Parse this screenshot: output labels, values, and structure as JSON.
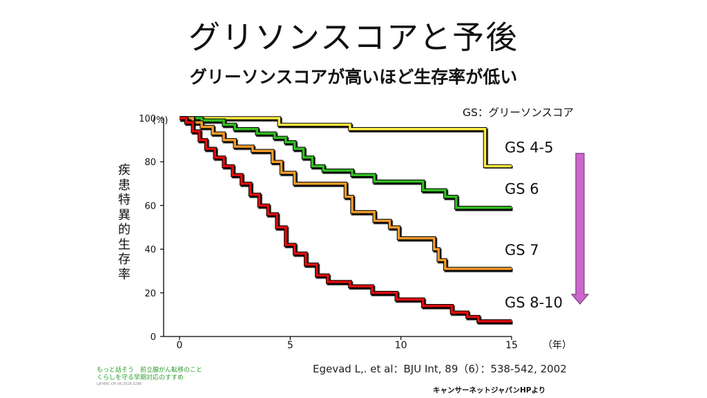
{
  "slide": {
    "title": "グリソンスコアと予後",
    "subtitle": "グリーソンスコアが高いほど生存率が低い",
    "citation": "Egevad L,. et al：BJU Int, 89（6）：538-542, 2002",
    "source": "キャンサーネットジャパンHPより",
    "footer_line1": "もっと話そう　前立腺がん転移のこと",
    "footer_line2": "くらしを守る早期対応のすすめ",
    "footer_code": "LJP.MAC.OH.06.2018.3296"
  },
  "chart_data": {
    "type": "line",
    "step": true,
    "ylabel": "疾患特異的生存率",
    "ylabel_unit": "(%)",
    "xlabel_unit": "（年）",
    "legend_title": "GS：グリーソンスコア",
    "xlim": [
      0,
      15
    ],
    "ylim": [
      0,
      100
    ],
    "xticks": [
      0,
      5,
      10,
      15
    ],
    "yticks": [
      0,
      20,
      40,
      60,
      80,
      100
    ],
    "arrow_color": "#cc66cc",
    "series": [
      {
        "name": "GS 4-5",
        "color": "#ffee44",
        "points": [
          [
            0,
            100
          ],
          [
            4.5,
            100
          ],
          [
            4.5,
            97
          ],
          [
            7.7,
            97
          ],
          [
            7.7,
            95
          ],
          [
            13.8,
            95
          ],
          [
            13.8,
            78
          ],
          [
            15,
            78
          ]
        ]
      },
      {
        "name": "GS 6",
        "color": "#33bb22",
        "points": [
          [
            0,
            100
          ],
          [
            1,
            100
          ],
          [
            1,
            99
          ],
          [
            2,
            99
          ],
          [
            2,
            97
          ],
          [
            2.5,
            97
          ],
          [
            2.5,
            95
          ],
          [
            3.5,
            95
          ],
          [
            3.5,
            93
          ],
          [
            4.3,
            93
          ],
          [
            4.3,
            91
          ],
          [
            4.8,
            91
          ],
          [
            4.8,
            89
          ],
          [
            5.2,
            89
          ],
          [
            5.2,
            86
          ],
          [
            5.6,
            86
          ],
          [
            5.6,
            82
          ],
          [
            6,
            82
          ],
          [
            6,
            78
          ],
          [
            6.5,
            78
          ],
          [
            6.5,
            76
          ],
          [
            7.8,
            76
          ],
          [
            7.8,
            74
          ],
          [
            8.8,
            74
          ],
          [
            8.8,
            71
          ],
          [
            11,
            71
          ],
          [
            11,
            67
          ],
          [
            12,
            67
          ],
          [
            12,
            64
          ],
          [
            12.5,
            64
          ],
          [
            12.5,
            59
          ],
          [
            15,
            59
          ]
        ]
      },
      {
        "name": "GS 7",
        "color": "#f09a2a",
        "points": [
          [
            0,
            100
          ],
          [
            0.6,
            100
          ],
          [
            0.6,
            98
          ],
          [
            1,
            98
          ],
          [
            1,
            96
          ],
          [
            1.5,
            96
          ],
          [
            1.5,
            93
          ],
          [
            2,
            93
          ],
          [
            2,
            90
          ],
          [
            2.5,
            90
          ],
          [
            2.5,
            87
          ],
          [
            3.3,
            87
          ],
          [
            3.3,
            85
          ],
          [
            4.2,
            85
          ],
          [
            4.2,
            80
          ],
          [
            4.6,
            80
          ],
          [
            4.6,
            75
          ],
          [
            5.2,
            75
          ],
          [
            5.2,
            70
          ],
          [
            7.5,
            70
          ],
          [
            7.5,
            64
          ],
          [
            7.8,
            64
          ],
          [
            7.8,
            57
          ],
          [
            8.8,
            57
          ],
          [
            8.8,
            53
          ],
          [
            9.5,
            53
          ],
          [
            9.5,
            50
          ],
          [
            9.9,
            50
          ],
          [
            9.9,
            45
          ],
          [
            11.5,
            45
          ],
          [
            11.5,
            40
          ],
          [
            11.7,
            40
          ],
          [
            11.7,
            35
          ],
          [
            12,
            35
          ],
          [
            12,
            31
          ],
          [
            15,
            31
          ]
        ]
      },
      {
        "name": "GS 8-10",
        "color": "#dd1111",
        "points": [
          [
            0,
            100
          ],
          [
            0.3,
            100
          ],
          [
            0.3,
            98
          ],
          [
            0.6,
            98
          ],
          [
            0.6,
            94
          ],
          [
            0.9,
            94
          ],
          [
            0.9,
            90
          ],
          [
            1.2,
            90
          ],
          [
            1.2,
            86
          ],
          [
            1.6,
            86
          ],
          [
            1.6,
            82
          ],
          [
            2,
            82
          ],
          [
            2,
            78
          ],
          [
            2.4,
            78
          ],
          [
            2.4,
            74
          ],
          [
            2.8,
            74
          ],
          [
            2.8,
            70
          ],
          [
            3.2,
            70
          ],
          [
            3.2,
            65
          ],
          [
            3.6,
            65
          ],
          [
            3.6,
            60
          ],
          [
            4,
            60
          ],
          [
            4,
            56
          ],
          [
            4.4,
            56
          ],
          [
            4.4,
            50
          ],
          [
            4.8,
            50
          ],
          [
            4.8,
            42
          ],
          [
            5.2,
            42
          ],
          [
            5.2,
            38
          ],
          [
            5.7,
            38
          ],
          [
            5.7,
            33
          ],
          [
            6.2,
            33
          ],
          [
            6.2,
            28
          ],
          [
            6.7,
            28
          ],
          [
            6.7,
            25
          ],
          [
            7.7,
            25
          ],
          [
            7.7,
            23
          ],
          [
            8.7,
            23
          ],
          [
            8.7,
            20
          ],
          [
            9.8,
            20
          ],
          [
            9.8,
            17
          ],
          [
            11,
            17
          ],
          [
            11,
            14
          ],
          [
            12.3,
            14
          ],
          [
            12.3,
            11
          ],
          [
            13,
            11
          ],
          [
            13,
            9
          ],
          [
            13.5,
            9
          ],
          [
            13.5,
            7
          ],
          [
            15,
            7
          ]
        ]
      }
    ]
  }
}
